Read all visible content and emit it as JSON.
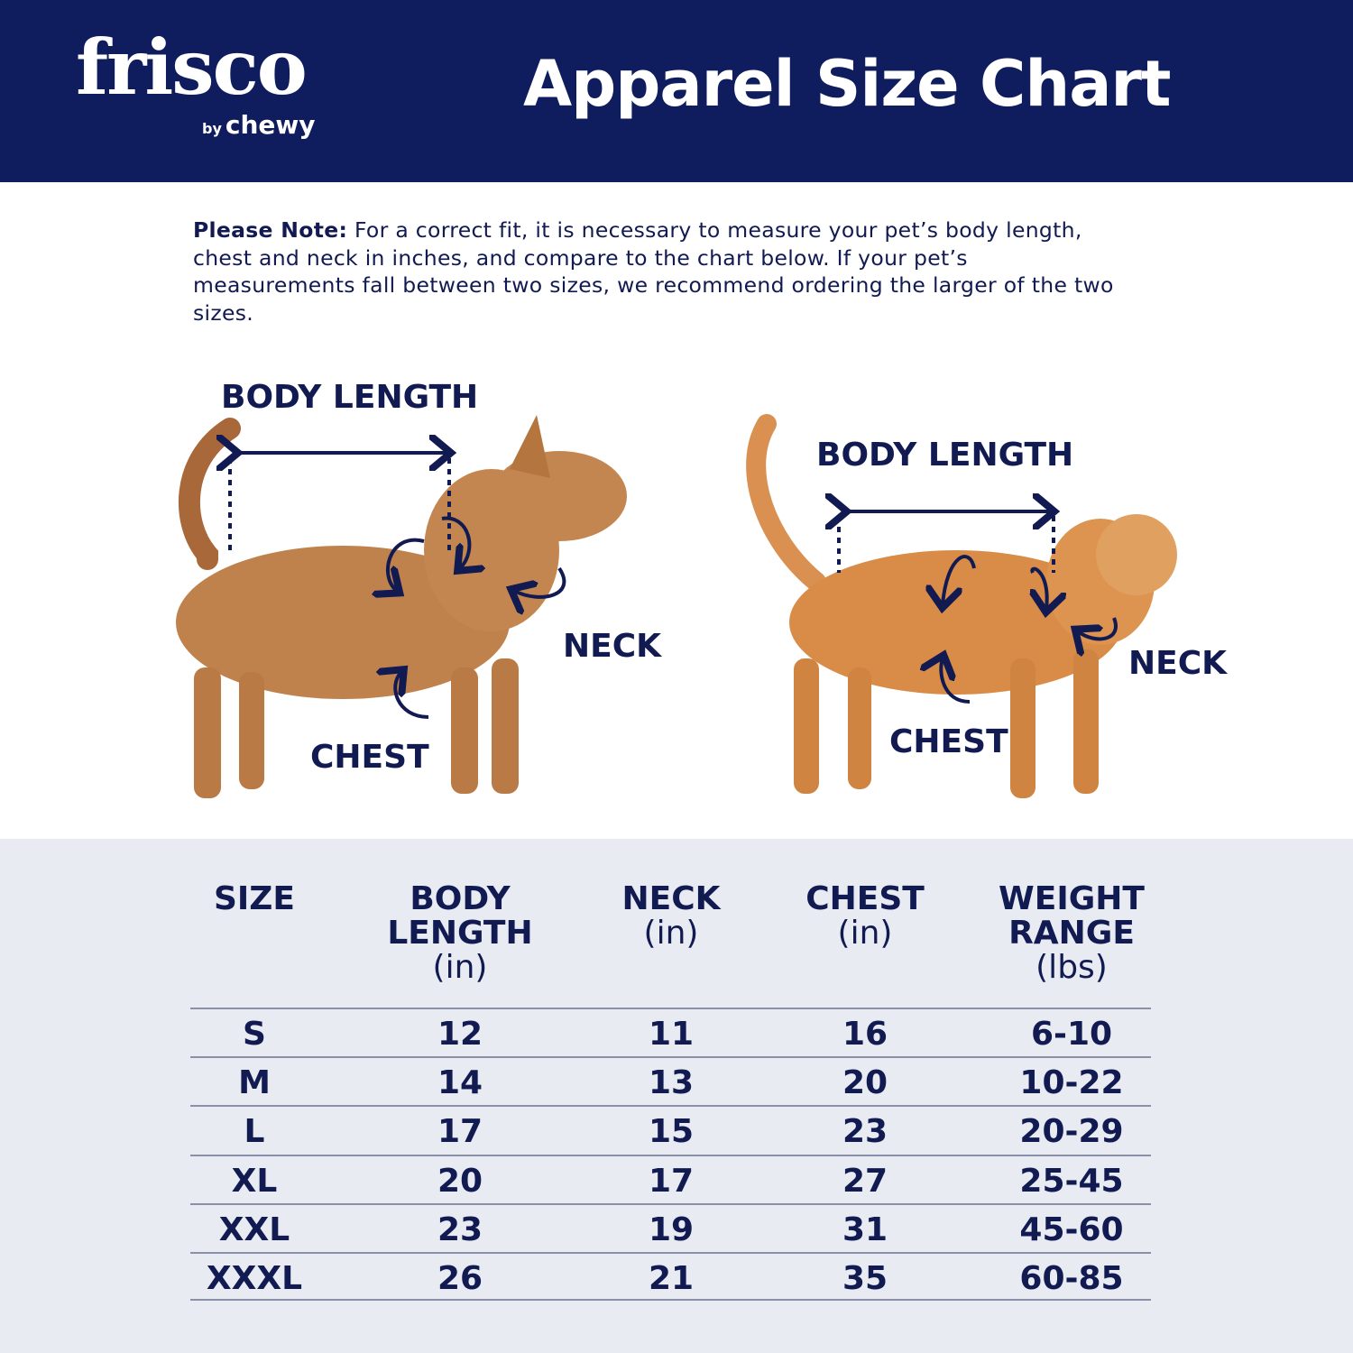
{
  "header": {
    "logo_brand": "frisco",
    "logo_by": "by",
    "logo_chewy": "chewy",
    "title": "Apparel Size Chart"
  },
  "note": {
    "label": "Please Note:",
    "text": "For a correct fit, it is necessary to measure your pet’s body length, chest and neck in inches, and compare to the chart below. If your pet’s measurements fall between two sizes, we recommend ordering the larger of the two sizes."
  },
  "diagram": {
    "dog": {
      "body_length": "BODY LENGTH",
      "neck": "NECK",
      "chest": "CHEST"
    },
    "cat": {
      "body_length": "BODY LENGTH",
      "neck": "NECK",
      "chest": "CHEST"
    }
  },
  "colors": {
    "navy": "#0f1c5e",
    "text": "#121a52",
    "table_bg": "#e8ecf2"
  },
  "table": {
    "headers": [
      {
        "title": "SIZE",
        "unit": ""
      },
      {
        "title": "BODY LENGTH",
        "unit": "(in)"
      },
      {
        "title": "NECK",
        "unit": "(in)"
      },
      {
        "title": "CHEST",
        "unit": "(in)"
      },
      {
        "title": "WEIGHT RANGE",
        "unit": "(lbs)"
      }
    ],
    "rows": [
      [
        "S",
        "12",
        "11",
        "16",
        "6-10"
      ],
      [
        "M",
        "14",
        "13",
        "20",
        "10-22"
      ],
      [
        "L",
        "17",
        "15",
        "23",
        "20-29"
      ],
      [
        "XL",
        "20",
        "17",
        "27",
        "25-45"
      ],
      [
        "XXL",
        "23",
        "19",
        "31",
        "45-60"
      ],
      [
        "XXXL",
        "26",
        "21",
        "35",
        "60-85"
      ]
    ]
  }
}
